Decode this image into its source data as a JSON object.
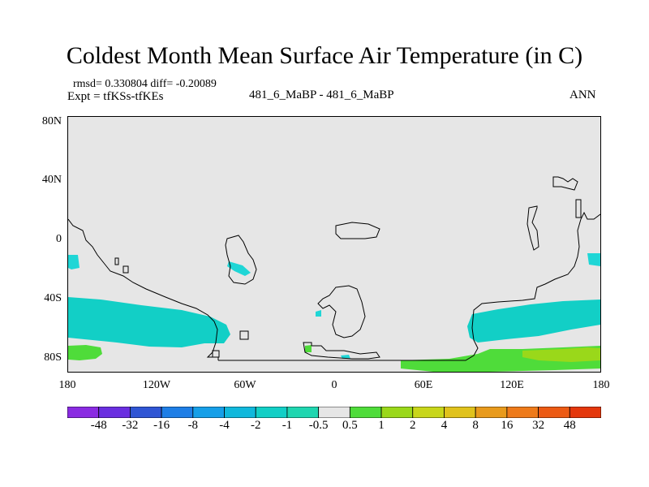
{
  "title": "Coldest Month Mean Surface Air Temperature (in C)",
  "stats_line": "rmsd= 0.330804 diff= -0.20089",
  "expt_line": "Expt = tfKSs-tfKEs",
  "center_label": "481_6_MaBP - 481_6_MaBP",
  "right_label": "ANN",
  "y_axis": {
    "ticks": [
      "80N",
      "40N",
      "0",
      "40S",
      "80S"
    ]
  },
  "x_axis": {
    "ticks": [
      "180",
      "120W",
      "60W",
      "0",
      "60E",
      "120E",
      "180"
    ]
  },
  "colorbar": {
    "labels": [
      "-48",
      "-32",
      "-16",
      "-8",
      "-4",
      "-2",
      "-1",
      "-0.5",
      "0.5",
      "1",
      "2",
      "4",
      "8",
      "16",
      "32",
      "48"
    ],
    "colors": [
      "#8a2be2",
      "#6a2ee0",
      "#2f55d4",
      "#1e7ee6",
      "#169fe8",
      "#10b8dc",
      "#12cfc6",
      "#1fd6b0",
      "#e6e6e6",
      "#4fdc3a",
      "#9ad81a",
      "#c8d61a",
      "#e0c21c",
      "#e89a1c",
      "#ee7a1a",
      "#ec5a14",
      "#e4370c"
    ]
  },
  "map_colors": {
    "background": "#e6e6e6",
    "cyan": "#12cfc6",
    "cyan_light": "#1fd6d6",
    "green": "#4fdc3a",
    "yellow_green": "#9ad81a",
    "coast": "#000000"
  }
}
